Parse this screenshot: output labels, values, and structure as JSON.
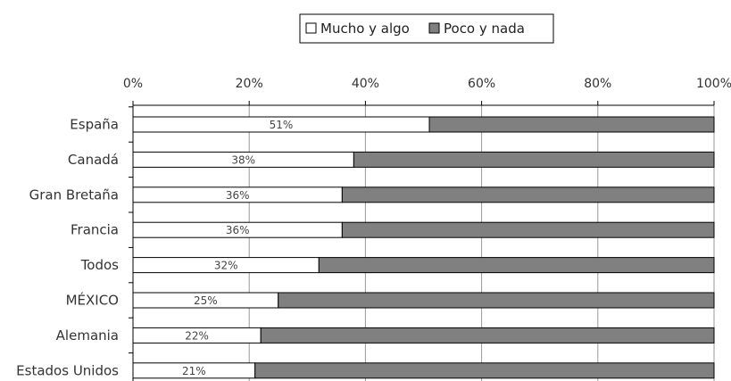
{
  "chart_data": {
    "type": "bar",
    "orientation": "horizontal",
    "stacked": true,
    "percent_stacked": true,
    "categories": [
      "España",
      "Canadá",
      "Gran Bretaña",
      "Francia",
      "Todos",
      "MÉXICO",
      "Alemania",
      "Estados Unidos"
    ],
    "series": [
      {
        "name": "Mucho y algo",
        "values": [
          51,
          38,
          36,
          36,
          32,
          25,
          22,
          21
        ]
      },
      {
        "name": "Poco y nada",
        "values": [
          49,
          62,
          64,
          64,
          68,
          75,
          78,
          79
        ]
      }
    ],
    "data_labels": [
      "51%",
      "38%",
      "36%",
      "36%",
      "32%",
      "25%",
      "22%",
      "21%"
    ],
    "x_ticks": [
      "0%",
      "20%",
      "40%",
      "60%",
      "80%",
      "100%"
    ],
    "xlim": [
      0,
      100
    ],
    "x_axis_position": "top",
    "legend_position": "top",
    "grid": true,
    "colors": {
      "Mucho y algo": "#ffffff",
      "Poco y nada": "#808080",
      "outline": "#000000",
      "grid": "#999999"
    }
  }
}
